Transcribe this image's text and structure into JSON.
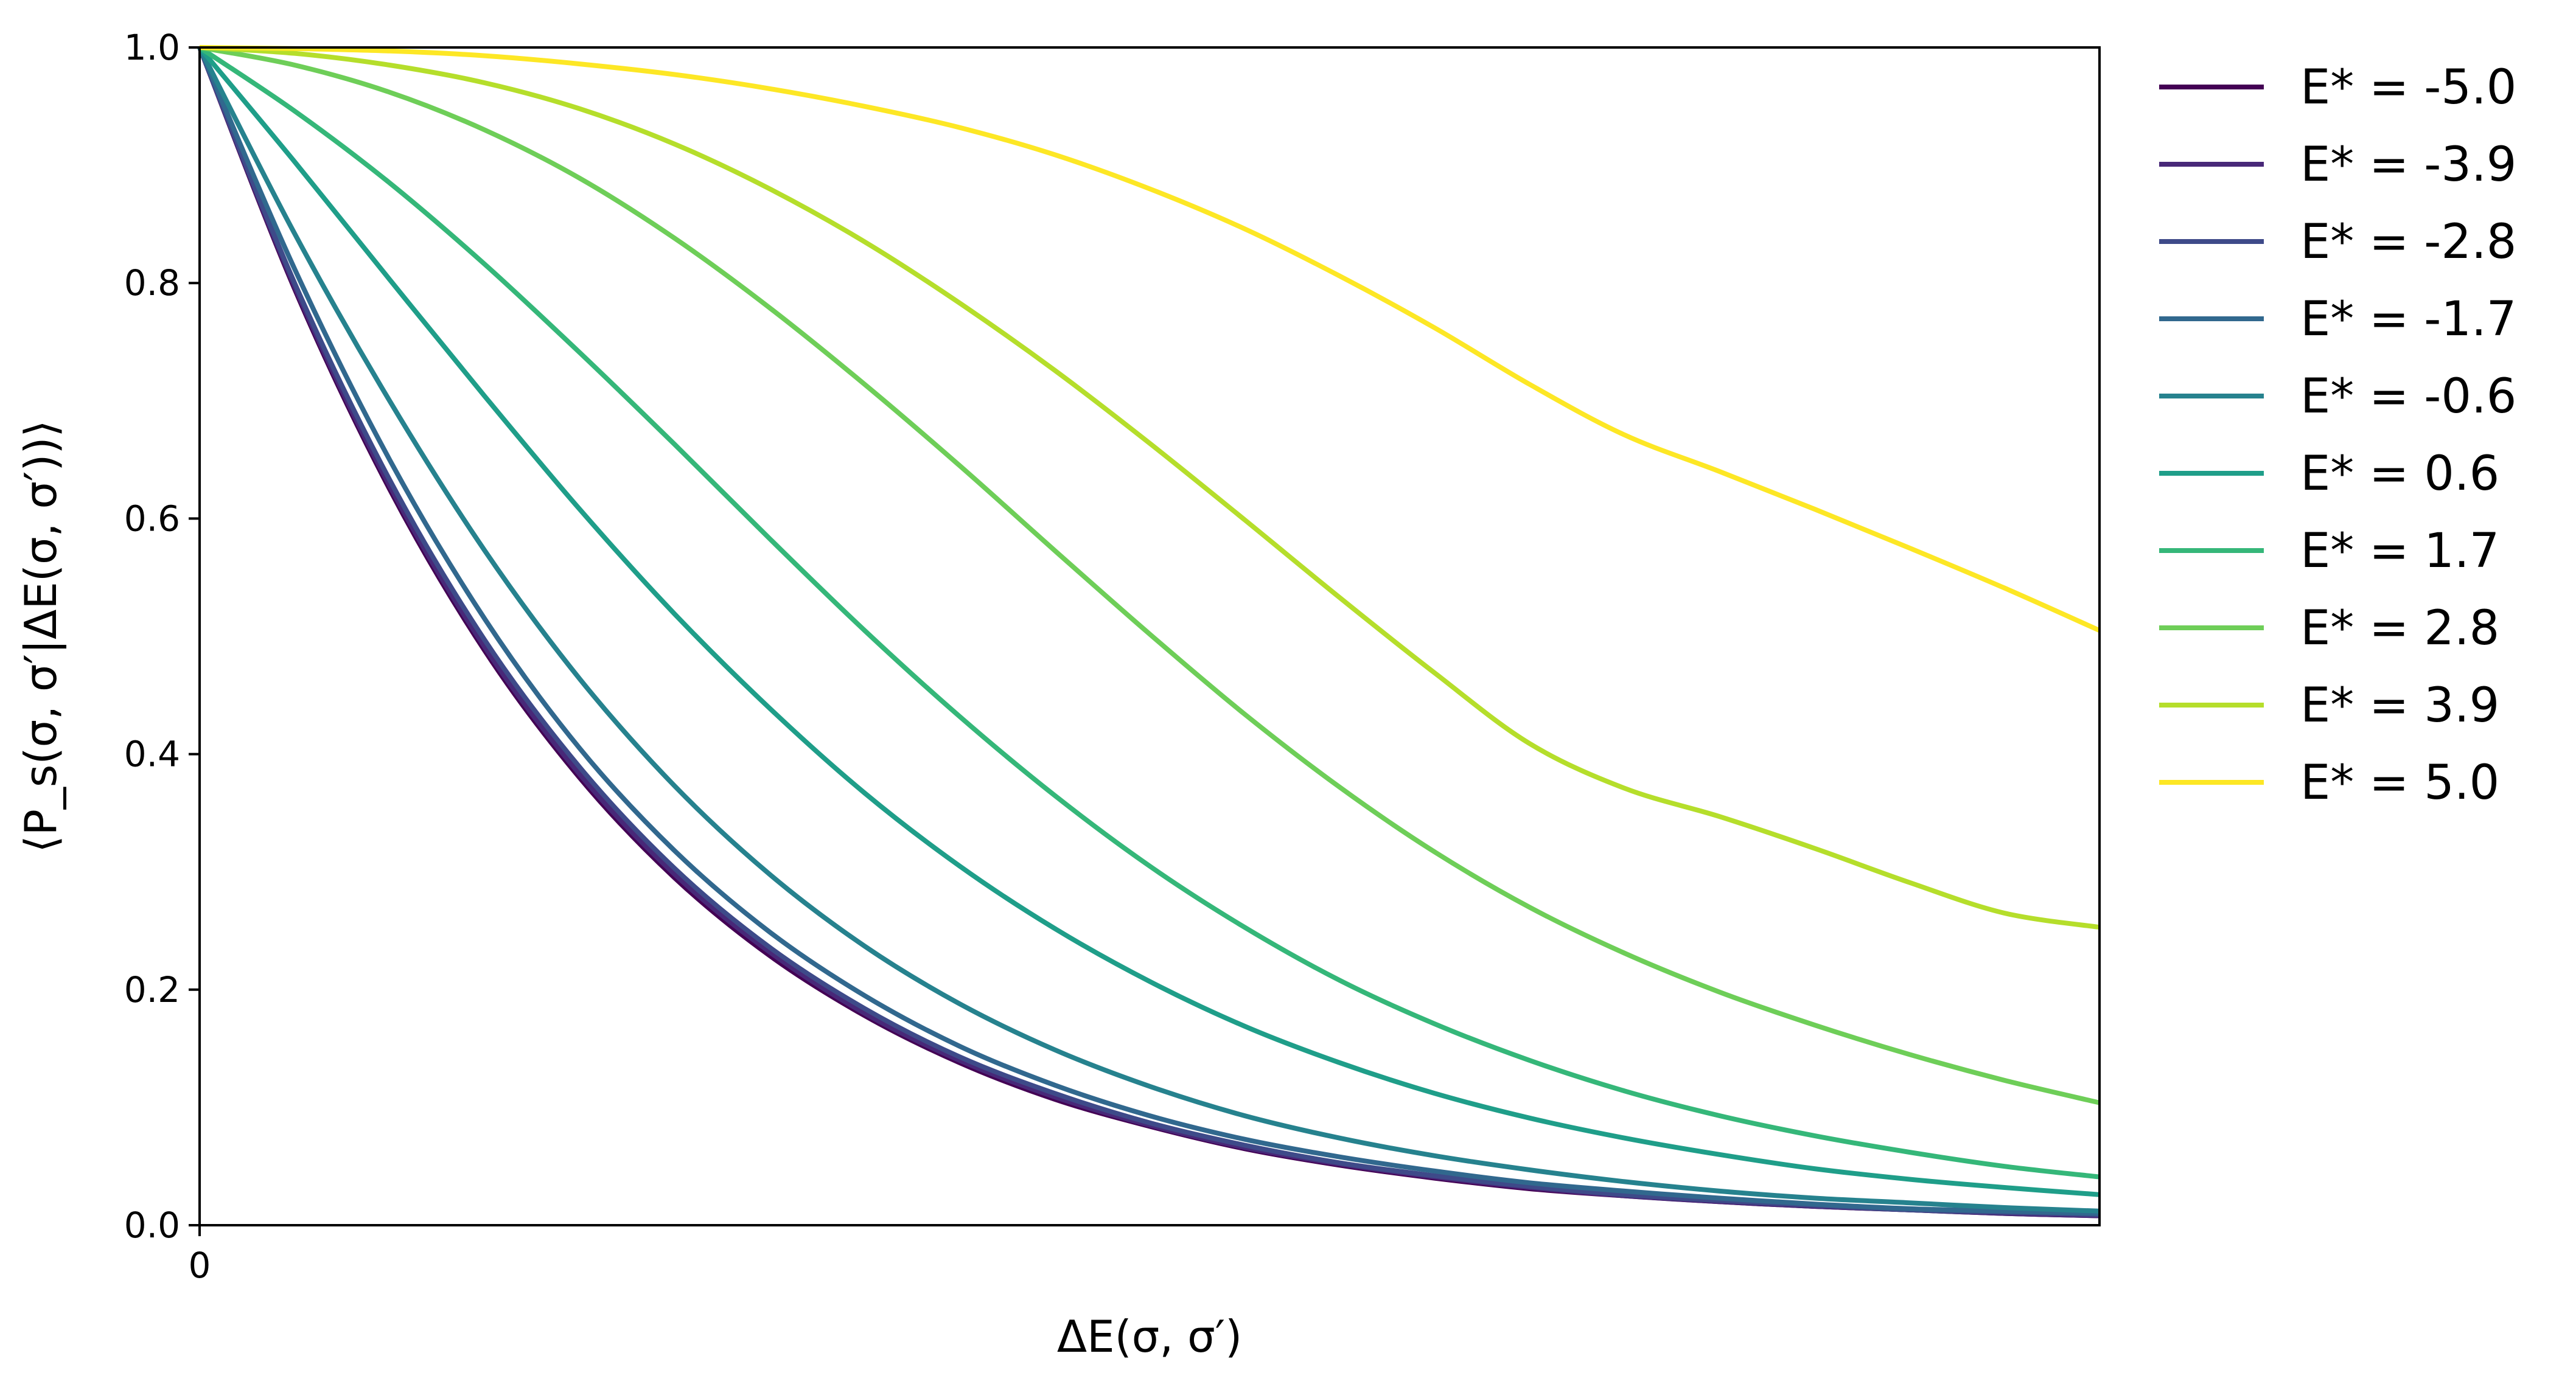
{
  "chart_data": {
    "type": "line",
    "title": "",
    "xlabel": "ΔE(σ, σ′)",
    "ylabel": "⟨P_s(σ, σ′|ΔE(σ, σ′))⟩",
    "xlim": [
      0,
      1
    ],
    "ylim": [
      0,
      1
    ],
    "x_ticks": [
      0
    ],
    "x_tick_labels": [
      "0"
    ],
    "y_ticks": [
      0.0,
      0.2,
      0.4,
      0.6,
      0.8,
      1.0
    ],
    "y_tick_labels": [
      "0.0",
      "0.2",
      "0.4",
      "0.6",
      "0.8",
      "1.0"
    ],
    "legend_position": "outside-right",
    "grid": false,
    "x": [
      0,
      0.05,
      0.1,
      0.15,
      0.2,
      0.25,
      0.3,
      0.35,
      0.4,
      0.45,
      0.5,
      0.55,
      0.6,
      0.65,
      0.7,
      0.75,
      0.8,
      0.85,
      0.9,
      0.95,
      1.0
    ],
    "series": [
      {
        "name": "E* = -5.0",
        "color": "#440154",
        "values": [
          1.0,
          0.795,
          0.625,
          0.488,
          0.38,
          0.295,
          0.229,
          0.178,
          0.138,
          0.107,
          0.084,
          0.065,
          0.051,
          0.04,
          0.031,
          0.025,
          0.02,
          0.016,
          0.013,
          0.01,
          0.008
        ]
      },
      {
        "name": "E* = -3.9",
        "color": "#482878",
        "values": [
          1.0,
          0.797,
          0.628,
          0.491,
          0.383,
          0.298,
          0.232,
          0.18,
          0.14,
          0.109,
          0.085,
          0.066,
          0.052,
          0.041,
          0.032,
          0.025,
          0.02,
          0.016,
          0.013,
          0.01,
          0.008
        ]
      },
      {
        "name": "E* = -2.8",
        "color": "#3e4a89",
        "values": [
          1.0,
          0.8,
          0.633,
          0.497,
          0.389,
          0.303,
          0.236,
          0.184,
          0.143,
          0.112,
          0.087,
          0.068,
          0.053,
          0.042,
          0.033,
          0.026,
          0.021,
          0.017,
          0.013,
          0.011,
          0.009
        ]
      },
      {
        "name": "E* = -1.7",
        "color": "#31688e",
        "values": [
          1.0,
          0.812,
          0.65,
          0.515,
          0.405,
          0.318,
          0.249,
          0.195,
          0.152,
          0.119,
          0.093,
          0.073,
          0.058,
          0.046,
          0.036,
          0.029,
          0.023,
          0.018,
          0.014,
          0.012,
          0.01
        ]
      },
      {
        "name": "E* = -0.6",
        "color": "#26828e",
        "values": [
          1.0,
          0.842,
          0.7,
          0.573,
          0.464,
          0.373,
          0.298,
          0.237,
          0.188,
          0.149,
          0.118,
          0.093,
          0.074,
          0.059,
          0.047,
          0.037,
          0.029,
          0.023,
          0.019,
          0.015,
          0.012
        ]
      },
      {
        "name": "E* = 0.6",
        "color": "#1f9e89",
        "values": [
          1.0,
          0.903,
          0.803,
          0.704,
          0.608,
          0.519,
          0.439,
          0.367,
          0.305,
          0.252,
          0.207,
          0.169,
          0.138,
          0.112,
          0.091,
          0.074,
          0.06,
          0.048,
          0.039,
          0.032,
          0.026
        ]
      },
      {
        "name": "E* = 1.7",
        "color": "#35b779",
        "values": [
          1.0,
          0.946,
          0.885,
          0.816,
          0.741,
          0.663,
          0.583,
          0.505,
          0.432,
          0.365,
          0.305,
          0.253,
          0.208,
          0.171,
          0.14,
          0.114,
          0.093,
          0.076,
          0.062,
          0.05,
          0.041
        ]
      },
      {
        "name": "E* = 2.8",
        "color": "#6ece58",
        "values": [
          1.0,
          0.985,
          0.962,
          0.93,
          0.889,
          0.838,
          0.779,
          0.714,
          0.645,
          0.573,
          0.502,
          0.434,
          0.372,
          0.317,
          0.27,
          0.231,
          0.198,
          0.17,
          0.145,
          0.123,
          0.104
        ]
      },
      {
        "name": "E* = 3.9",
        "color": "#b5de2b",
        "values": [
          1.0,
          0.995,
          0.985,
          0.97,
          0.948,
          0.918,
          0.88,
          0.835,
          0.783,
          0.726,
          0.664,
          0.599,
          0.533,
          0.469,
          0.409,
          0.371,
          0.347,
          0.32,
          0.291,
          0.265,
          0.253
        ]
      },
      {
        "name": "E* = 5.0",
        "color": "#fde725",
        "values": [
          1.0,
          0.999,
          0.997,
          0.993,
          0.986,
          0.977,
          0.965,
          0.95,
          0.932,
          0.909,
          0.88,
          0.846,
          0.806,
          0.762,
          0.714,
          0.671,
          0.64,
          0.608,
          0.575,
          0.541,
          0.505
        ]
      }
    ]
  }
}
